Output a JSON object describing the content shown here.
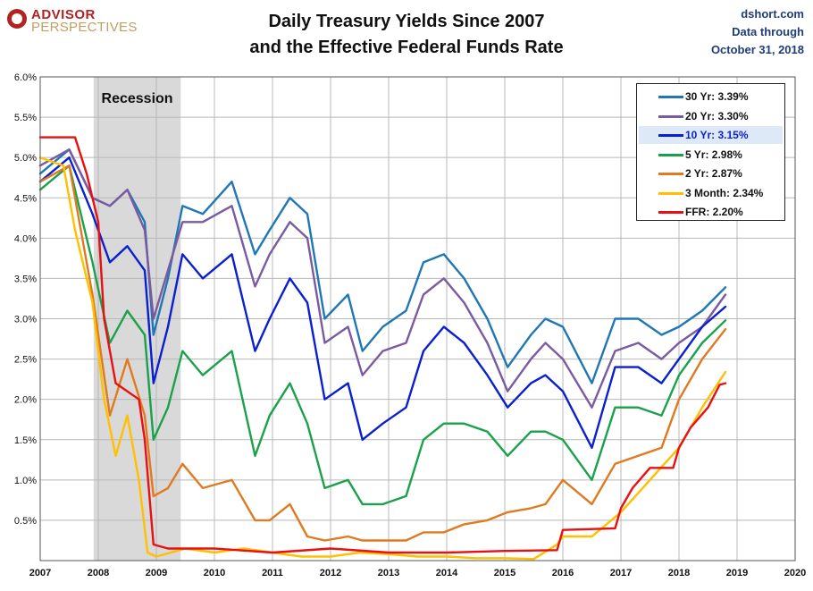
{
  "header": {
    "logo_line1": "ADVISOR",
    "logo_line2": "PERSPECTIVES",
    "title_line1": "Daily Treasury Yields Since 2007",
    "title_line2": "and the Effective Federal Funds Rate",
    "source_line1": "dshort.com",
    "source_line2": "Data through",
    "source_line3": "October 31, 2018"
  },
  "chart_data": {
    "type": "line",
    "x_ticks": [
      "2007",
      "2008",
      "2009",
      "2010",
      "2011",
      "2012",
      "2013",
      "2014",
      "2015",
      "2016",
      "2017",
      "2018",
      "2019",
      "2020"
    ],
    "y_ticks": [
      "",
      "0.5%",
      "1.0%",
      "1.5%",
      "2.0%",
      "2.5%",
      "3.0%",
      "3.5%",
      "4.0%",
      "4.5%",
      "5.0%",
      "5.5%",
      "6.0%"
    ],
    "xlim": [
      2007,
      2020
    ],
    "ylim": [
      0,
      6
    ],
    "grid": true,
    "legend_placement": "top-right",
    "annotation": {
      "label": "Recession",
      "x_start": 2007.92,
      "x_end": 2009.42
    },
    "series": [
      {
        "name": "30 Yr: 3.39%",
        "color": "#1f77b4",
        "x": [
          2007.0,
          2007.5,
          2007.9,
          2008.2,
          2008.5,
          2008.8,
          2008.95,
          2009.2,
          2009.45,
          2009.8,
          2010.3,
          2010.7,
          2010.95,
          2011.3,
          2011.6,
          2011.9,
          2012.3,
          2012.55,
          2012.9,
          2013.3,
          2013.6,
          2013.95,
          2014.3,
          2014.7,
          2015.05,
          2015.45,
          2015.7,
          2016.0,
          2016.5,
          2016.9,
          2017.3,
          2017.7,
          2018.0,
          2018.4,
          2018.8
        ],
        "y": [
          4.8,
          5.1,
          4.5,
          4.4,
          4.6,
          4.2,
          2.8,
          3.5,
          4.4,
          4.3,
          4.7,
          3.8,
          4.1,
          4.5,
          4.3,
          3.0,
          3.3,
          2.6,
          2.9,
          3.1,
          3.7,
          3.8,
          3.5,
          3.0,
          2.4,
          2.8,
          3.0,
          2.9,
          2.2,
          3.0,
          3.0,
          2.8,
          2.9,
          3.1,
          3.39
        ]
      },
      {
        "name": "20 Yr: 3.30%",
        "color": "#7a5aa0",
        "x": [
          2007.0,
          2007.5,
          2007.9,
          2008.2,
          2008.5,
          2008.8,
          2008.95,
          2009.2,
          2009.45,
          2009.8,
          2010.3,
          2010.7,
          2010.95,
          2011.3,
          2011.6,
          2011.9,
          2012.3,
          2012.55,
          2012.9,
          2013.3,
          2013.6,
          2013.95,
          2014.3,
          2014.7,
          2015.05,
          2015.45,
          2015.7,
          2016.0,
          2016.5,
          2016.9,
          2017.3,
          2017.7,
          2018.0,
          2018.4,
          2018.8
        ],
        "y": [
          4.9,
          5.1,
          4.5,
          4.4,
          4.6,
          4.1,
          3.0,
          3.6,
          4.2,
          4.2,
          4.4,
          3.4,
          3.8,
          4.2,
          4.0,
          2.7,
          2.9,
          2.3,
          2.6,
          2.7,
          3.3,
          3.5,
          3.2,
          2.7,
          2.1,
          2.5,
          2.7,
          2.5,
          1.9,
          2.6,
          2.7,
          2.5,
          2.7,
          2.9,
          3.3
        ]
      },
      {
        "name": "10 Yr: 3.15%",
        "color": "#0a1fd0",
        "x": [
          2007.0,
          2007.5,
          2007.9,
          2008.2,
          2008.5,
          2008.8,
          2008.95,
          2009.2,
          2009.45,
          2009.8,
          2010.3,
          2010.7,
          2010.95,
          2011.3,
          2011.6,
          2011.9,
          2012.3,
          2012.55,
          2012.9,
          2013.3,
          2013.6,
          2013.95,
          2014.3,
          2014.7,
          2015.05,
          2015.45,
          2015.7,
          2016.0,
          2016.5,
          2016.9,
          2017.3,
          2017.7,
          2018.0,
          2018.4,
          2018.8
        ],
        "y": [
          4.7,
          5.0,
          4.3,
          3.7,
          3.9,
          3.6,
          2.2,
          2.9,
          3.8,
          3.5,
          3.8,
          2.6,
          3.0,
          3.5,
          3.2,
          2.0,
          2.2,
          1.5,
          1.7,
          1.9,
          2.6,
          2.9,
          2.7,
          2.3,
          1.9,
          2.2,
          2.3,
          2.1,
          1.4,
          2.4,
          2.4,
          2.2,
          2.5,
          2.9,
          3.15
        ]
      },
      {
        "name": "5 Yr: 2.98%",
        "color": "#1aa24a",
        "x": [
          2007.0,
          2007.5,
          2007.9,
          2008.2,
          2008.5,
          2008.8,
          2008.95,
          2009.2,
          2009.45,
          2009.8,
          2010.3,
          2010.7,
          2010.95,
          2011.3,
          2011.6,
          2011.9,
          2012.3,
          2012.55,
          2012.9,
          2013.3,
          2013.6,
          2013.95,
          2014.3,
          2014.7,
          2015.05,
          2015.45,
          2015.7,
          2016.0,
          2016.5,
          2016.9,
          2017.3,
          2017.7,
          2018.0,
          2018.4,
          2018.8
        ],
        "y": [
          4.6,
          4.9,
          3.7,
          2.7,
          3.1,
          2.8,
          1.5,
          1.9,
          2.6,
          2.3,
          2.6,
          1.3,
          1.8,
          2.2,
          1.7,
          0.9,
          1.0,
          0.7,
          0.7,
          0.8,
          1.5,
          1.7,
          1.7,
          1.6,
          1.3,
          1.6,
          1.6,
          1.5,
          1.0,
          1.9,
          1.9,
          1.8,
          2.3,
          2.7,
          2.98
        ]
      },
      {
        "name": "2 Yr: 2.87%",
        "color": "#e07a1f",
        "x": [
          2007.0,
          2007.5,
          2007.9,
          2008.2,
          2008.5,
          2008.8,
          2008.95,
          2009.2,
          2009.45,
          2009.8,
          2010.3,
          2010.7,
          2010.95,
          2011.3,
          2011.6,
          2011.9,
          2012.3,
          2012.55,
          2012.9,
          2013.3,
          2013.6,
          2013.95,
          2014.3,
          2014.7,
          2015.05,
          2015.45,
          2015.7,
          2016.0,
          2016.5,
          2016.9,
          2017.3,
          2017.7,
          2018.0,
          2018.4,
          2018.8
        ],
        "y": [
          4.7,
          4.9,
          3.3,
          1.8,
          2.5,
          1.8,
          0.8,
          0.9,
          1.2,
          0.9,
          1.0,
          0.5,
          0.5,
          0.7,
          0.3,
          0.25,
          0.3,
          0.25,
          0.25,
          0.25,
          0.35,
          0.35,
          0.45,
          0.5,
          0.6,
          0.65,
          0.7,
          1.0,
          0.7,
          1.2,
          1.3,
          1.4,
          2.0,
          2.5,
          2.87
        ]
      },
      {
        "name": "3 Month: 2.34%",
        "color": "#ffc000",
        "x": [
          2007.0,
          2007.4,
          2007.6,
          2007.9,
          2008.1,
          2008.3,
          2008.5,
          2008.7,
          2008.85,
          2009.0,
          2009.5,
          2010.0,
          2010.5,
          2011.0,
          2011.5,
          2012.0,
          2012.5,
          2013.0,
          2013.5,
          2014.0,
          2014.5,
          2015.0,
          2015.5,
          2015.9,
          2016.0,
          2016.5,
          2017.0,
          2017.5,
          2018.0,
          2018.4,
          2018.8
        ],
        "y": [
          5.0,
          4.9,
          4.1,
          3.2,
          2.0,
          1.3,
          1.8,
          1.0,
          0.1,
          0.05,
          0.15,
          0.1,
          0.15,
          0.1,
          0.05,
          0.05,
          0.1,
          0.08,
          0.05,
          0.05,
          0.03,
          0.03,
          0.02,
          0.2,
          0.3,
          0.3,
          0.6,
          1.0,
          1.4,
          1.9,
          2.34
        ]
      },
      {
        "name": "FFR: 2.20%",
        "color": "#e81010",
        "x": [
          2007.0,
          2007.6,
          2007.8,
          2008.0,
          2008.1,
          2008.3,
          2008.7,
          2008.8,
          2008.95,
          2009.2,
          2010.0,
          2011.0,
          2012.0,
          2013.0,
          2014.0,
          2015.0,
          2015.9,
          2016.0,
          2016.9,
          2017.0,
          2017.2,
          2017.5,
          2017.9,
          2018.0,
          2018.2,
          2018.5,
          2018.7,
          2018.8
        ],
        "y": [
          5.25,
          5.25,
          4.8,
          4.2,
          3.0,
          2.2,
          2.0,
          1.5,
          0.2,
          0.15,
          0.15,
          0.1,
          0.15,
          0.1,
          0.1,
          0.12,
          0.13,
          0.38,
          0.4,
          0.65,
          0.9,
          1.15,
          1.15,
          1.4,
          1.65,
          1.9,
          2.18,
          2.2
        ]
      }
    ]
  }
}
